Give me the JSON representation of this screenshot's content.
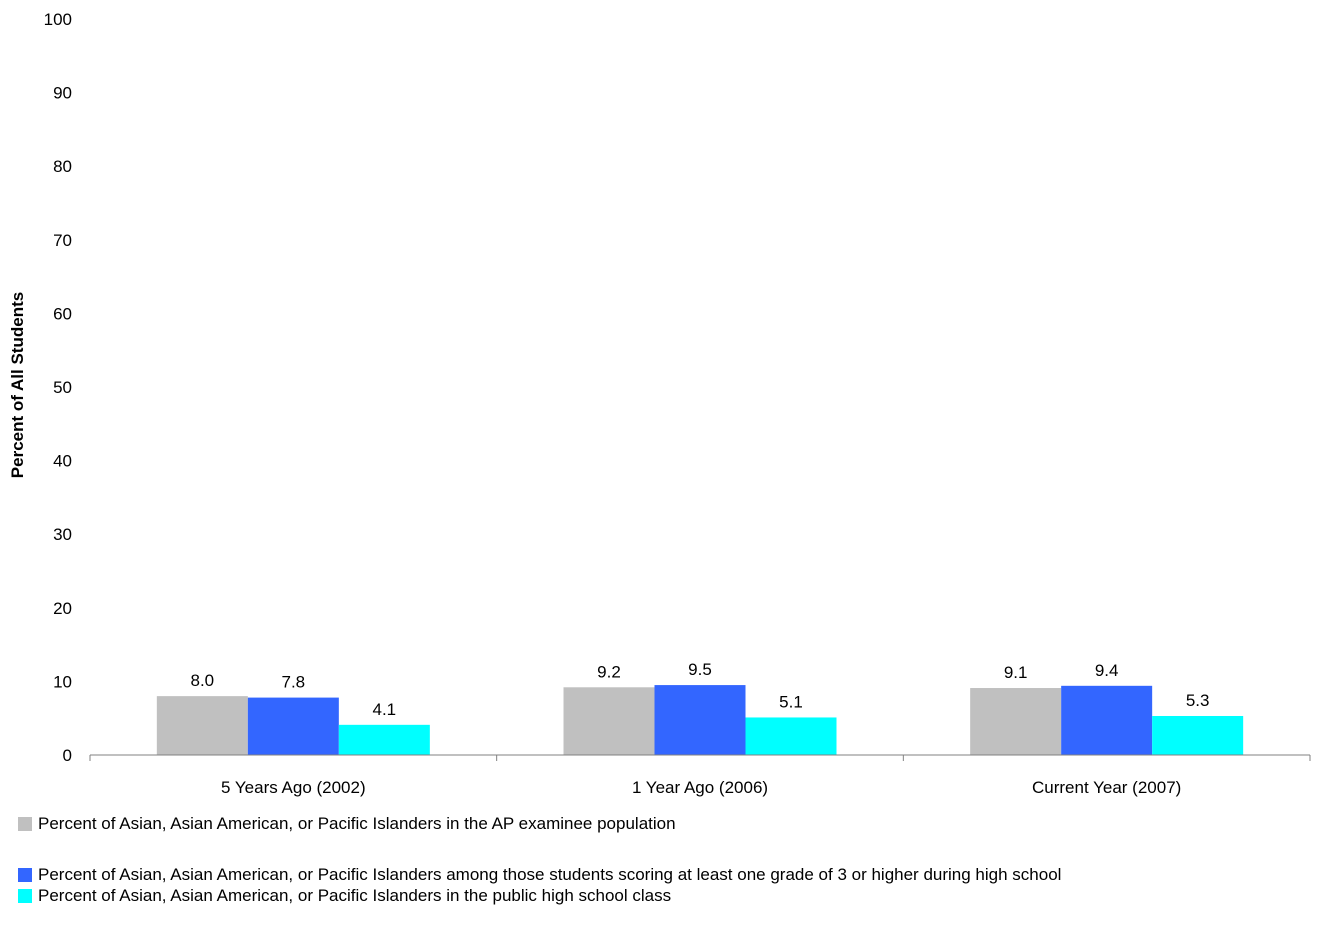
{
  "colors": {
    "series1": "#c0c0c0",
    "series2": "#3366ff",
    "series3": "#00ffff",
    "axis": "#808080"
  },
  "chart_data": {
    "type": "bar",
    "title": "",
    "xlabel": "",
    "ylabel": "Percent of All Students",
    "ylim": [
      0,
      100
    ],
    "yticks": [
      "0",
      "10",
      "20",
      "30",
      "40",
      "50",
      "60",
      "70",
      "80",
      "90",
      "100"
    ],
    "grid": false,
    "legend_position": "bottom",
    "categories": [
      "5 Years Ago (2002)",
      "1 Year Ago (2006)",
      "Current Year (2007)"
    ],
    "series": [
      {
        "name": "Percent of Asian, Asian American, or Pacific Islanders in the AP examinee population",
        "values": [
          8.0,
          9.2,
          9.1
        ],
        "labels": [
          "8.0",
          "9.2",
          "9.1"
        ]
      },
      {
        "name": "Percent of Asian, Asian American, or Pacific Islanders among those students scoring at least one grade of 3 or higher during high school",
        "values": [
          7.8,
          9.5,
          9.4
        ],
        "labels": [
          "7.8",
          "9.5",
          "9.4"
        ]
      },
      {
        "name": "Percent of Asian, Asian American, or Pacific Islanders in the public high school class",
        "values": [
          4.1,
          5.1,
          5.3
        ],
        "labels": [
          "4.1",
          "5.1",
          "5.3"
        ]
      }
    ]
  }
}
